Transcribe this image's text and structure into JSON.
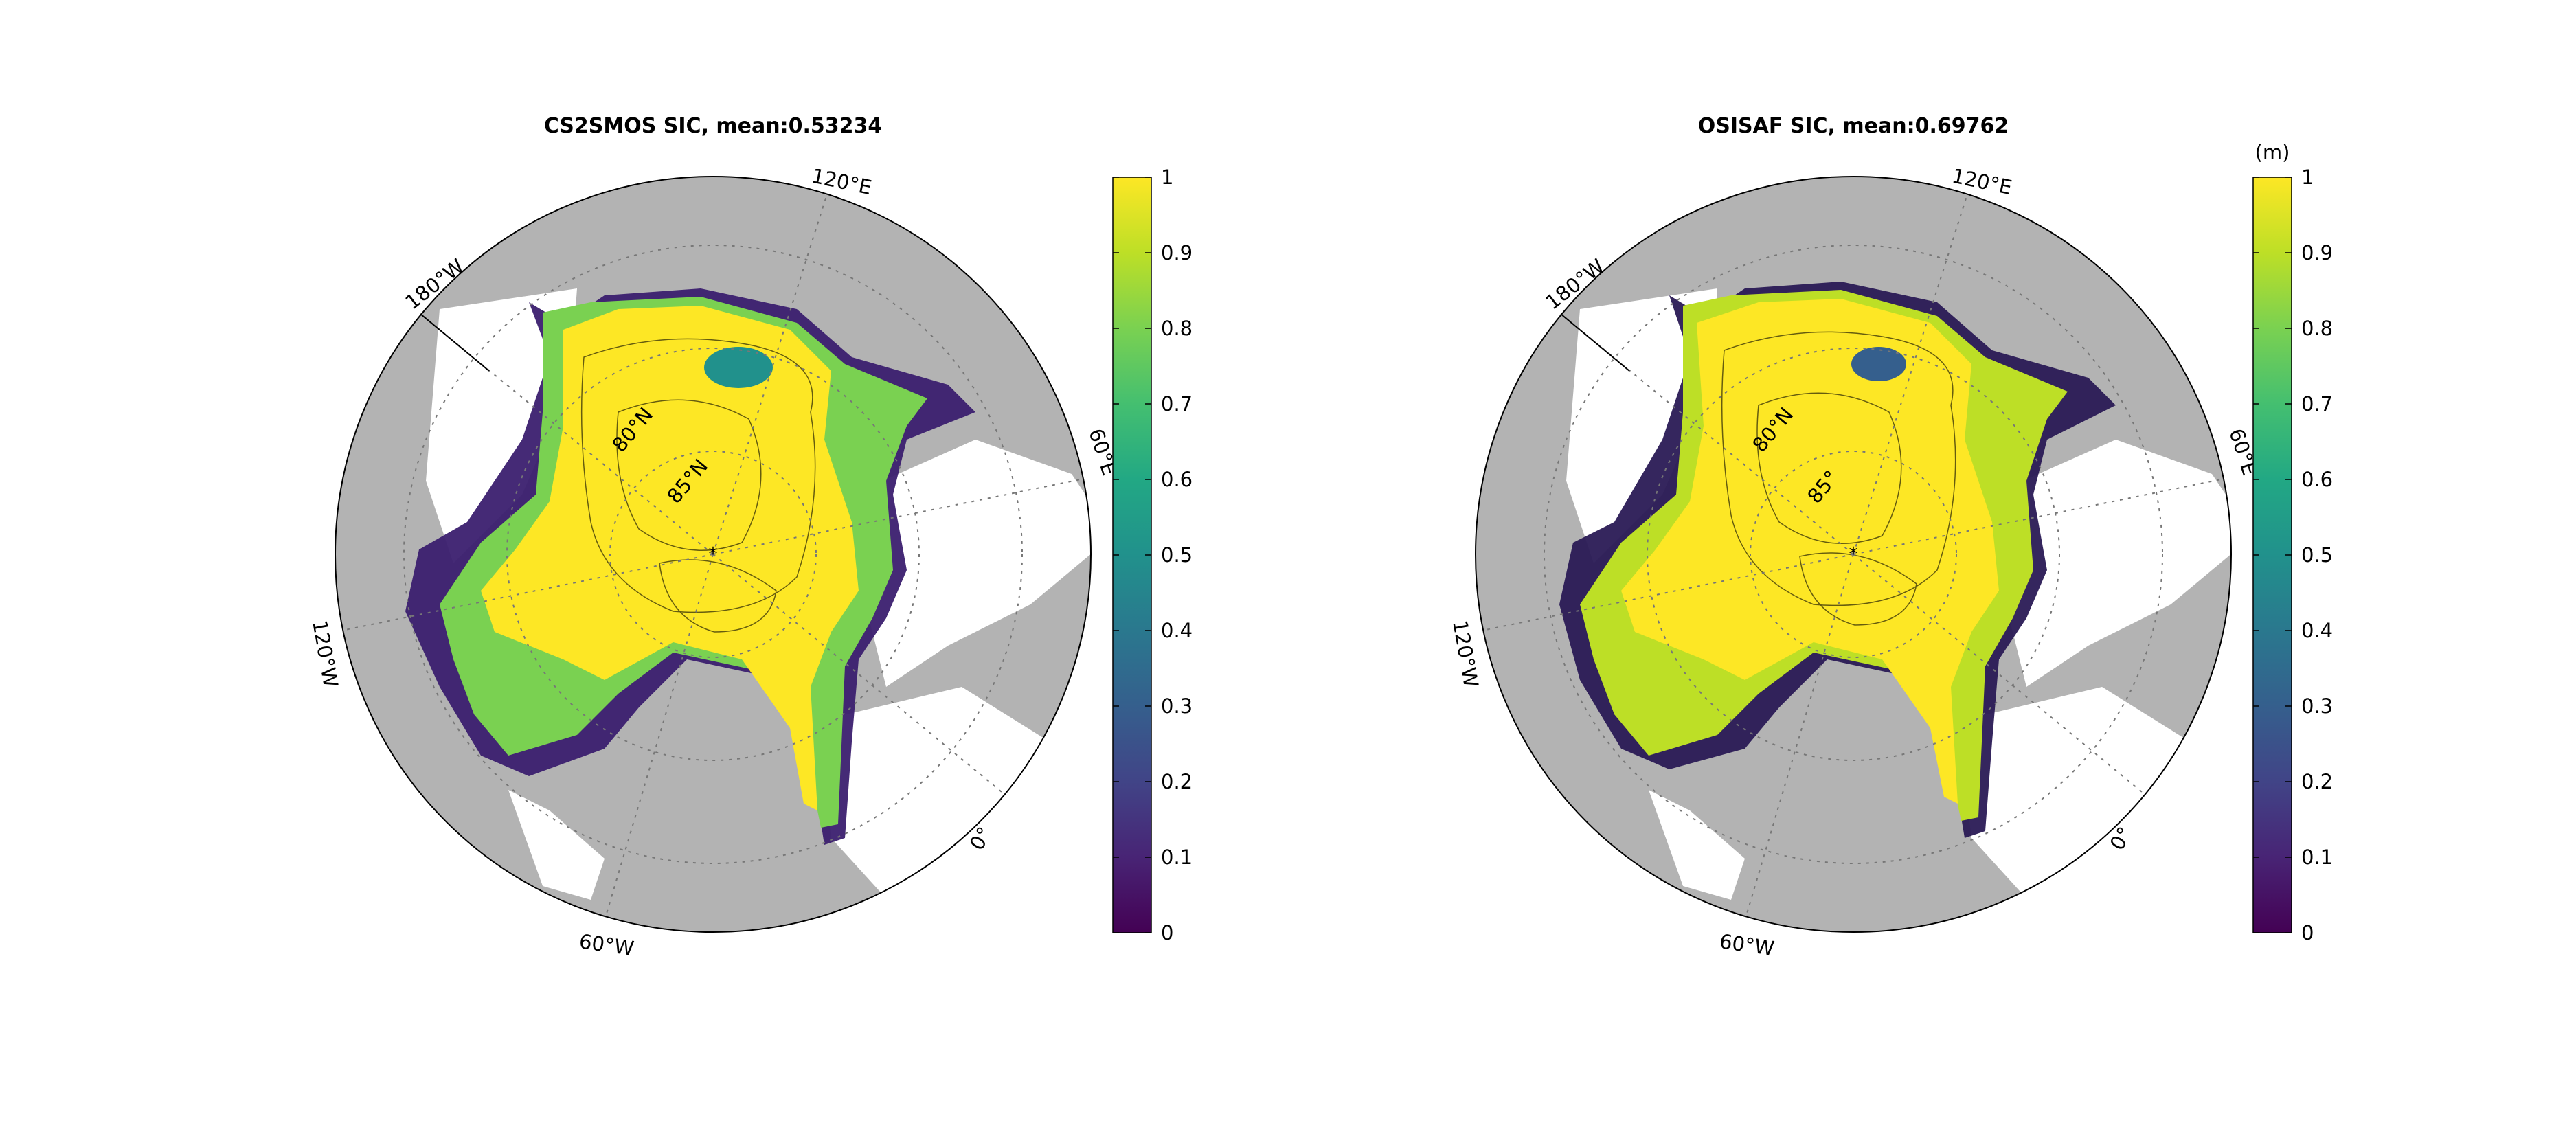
{
  "chart_data": [
    {
      "type": "heatmap",
      "projection": "north polar stereographic",
      "title": "CS2SMOS SIC, mean:0.53234",
      "lon_labels": [
        {
          "lon": 120,
          "text": "120°E"
        },
        {
          "lon": 60,
          "text": "60°E"
        },
        {
          "lon": 0,
          "text": "0°"
        },
        {
          "lon": -60,
          "text": "60°W"
        },
        {
          "lon": -120,
          "text": "120°W"
        },
        {
          "lon": 180,
          "text": "180°W"
        }
      ],
      "lat_labels": [
        {
          "lat": 80,
          "text": "80°N"
        },
        {
          "lat": 85,
          "text": "85°N"
        }
      ],
      "colorbar": {
        "label": "",
        "range": [
          0,
          1
        ],
        "ticks": [
          0,
          0.1,
          0.2,
          0.3,
          0.4,
          0.5,
          0.6,
          0.7,
          0.8,
          0.9,
          1
        ],
        "tick_labels": [
          "0",
          "0.1",
          "0.2",
          "0.3",
          "0.4",
          "0.5",
          "0.6",
          "0.7",
          "0.8",
          "0.9",
          "1"
        ],
        "colormap": "viridis"
      },
      "land_color": "#b3b3b3",
      "ocean_color": "#ffffff",
      "grid": true,
      "mean": 0.53234
    },
    {
      "type": "heatmap",
      "projection": "north polar stereographic",
      "title": "OSISAF SIC, mean:0.69762",
      "lon_labels": [
        {
          "lon": 120,
          "text": "120°E"
        },
        {
          "lon": 60,
          "text": "60°E"
        },
        {
          "lon": 0,
          "text": "0°"
        },
        {
          "lon": -60,
          "text": "60°W"
        },
        {
          "lon": -120,
          "text": "120°W"
        },
        {
          "lon": 180,
          "text": "180°W"
        }
      ],
      "lat_labels": [
        {
          "lat": 80,
          "text": "80°N"
        },
        {
          "lat": 85,
          "text": "85°"
        }
      ],
      "colorbar": {
        "label": "(m)",
        "range": [
          0,
          1
        ],
        "ticks": [
          0,
          0.1,
          0.2,
          0.3,
          0.4,
          0.5,
          0.6,
          0.7,
          0.8,
          0.9,
          1
        ],
        "tick_labels": [
          "0",
          "0.1",
          "0.2",
          "0.3",
          "0.4",
          "0.5",
          "0.6",
          "0.7",
          "0.8",
          "0.9",
          "1"
        ],
        "colormap": "viridis"
      },
      "land_color": "#b3b3b3",
      "ocean_color": "#ffffff",
      "grid": true,
      "mean": 0.69762
    }
  ]
}
